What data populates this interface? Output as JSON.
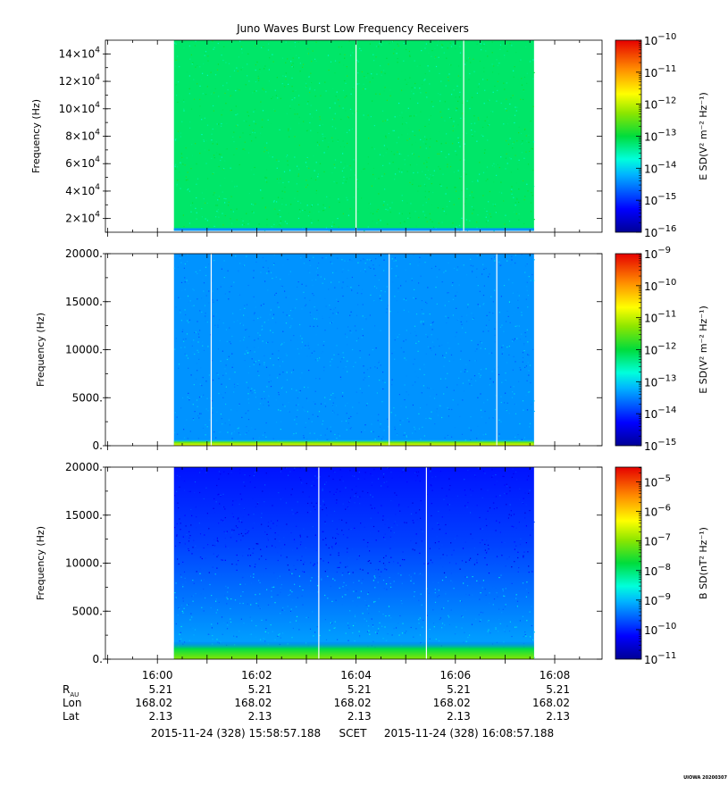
{
  "title": "Juno Waves Burst Low Frequency Receivers",
  "watermark": "UIOWA 20200307",
  "colors": {
    "axis": "#000000",
    "gap": "#ffffff",
    "grid_tick": "#000000"
  },
  "chart_data": [
    {
      "type": "heatmap",
      "name": "E spectral density, high band",
      "ylabel": "Frequency (Hz)",
      "y_ticks": [
        {
          "value": 20000,
          "mant": "2",
          "exp": "4"
        },
        {
          "value": 40000,
          "mant": "4",
          "exp": "4"
        },
        {
          "value": 60000,
          "mant": "6",
          "exp": "4"
        },
        {
          "value": 80000,
          "mant": "8",
          "exp": "4"
        },
        {
          "value": 100000,
          "mant": "10",
          "exp": "4"
        },
        {
          "value": 120000,
          "mant": "12",
          "exp": "4"
        },
        {
          "value": 140000,
          "mant": "14",
          "exp": "4"
        }
      ],
      "ylim": [
        10000,
        150000
      ],
      "data_start_freq": 11000,
      "colorbar_label": "E SD(V² m⁻² Hz⁻¹)",
      "colorbar_exponents": [
        -16,
        -15,
        -14,
        -13,
        -12,
        -11,
        -10
      ],
      "colorbar_range": [
        -16,
        -10
      ],
      "background_level": -13.2,
      "low_band_level": null,
      "gradient_level": null,
      "gaps": [
        "16:04:00",
        "16:06:10"
      ]
    },
    {
      "type": "heatmap",
      "name": "E spectral density, low band",
      "ylabel": "Frequency (Hz)",
      "y_ticks": [
        {
          "value": 0,
          "text": "0."
        },
        {
          "value": 5000,
          "text": "5000."
        },
        {
          "value": 10000,
          "text": "10000."
        },
        {
          "value": 15000,
          "text": "15000."
        },
        {
          "value": 20000,
          "text": "20000."
        }
      ],
      "ylim": [
        0,
        20000
      ],
      "data_start_freq": 0,
      "colorbar_label": "E SD(V² m⁻² Hz⁻¹)",
      "colorbar_exponents": [
        -15,
        -14,
        -13,
        -12,
        -11,
        -10,
        -9
      ],
      "colorbar_range": [
        -15,
        -9
      ],
      "background_level": -13.4,
      "low_band_level": -11.5,
      "gradient_level": null,
      "gaps": [
        "16:01:05",
        "16:04:40",
        "16:06:50"
      ]
    },
    {
      "type": "heatmap",
      "name": "B spectral density",
      "ylabel": "Frequency (Hz)",
      "y_ticks": [
        {
          "value": 0,
          "text": "0."
        },
        {
          "value": 5000,
          "text": "5000."
        },
        {
          "value": 10000,
          "text": "10000."
        },
        {
          "value": 15000,
          "text": "15000."
        },
        {
          "value": 20000,
          "text": "20000."
        }
      ],
      "ylim": [
        0,
        20000
      ],
      "data_start_freq": 0,
      "colorbar_label": "B SD(nT² Hz⁻¹)",
      "colorbar_exponents": [
        -11,
        -10,
        -9,
        -8,
        -7,
        -6,
        -5
      ],
      "colorbar_range": [
        -11,
        -4.5
      ],
      "background_level": -10.1,
      "low_band_level": -7.8,
      "gradient_level": -9.2,
      "gaps": [
        "16:03:15",
        "16:05:25"
      ]
    }
  ],
  "time_axis": {
    "start": "15:58:57.188",
    "end": "16:08:57.188",
    "data_start": "16:00:20",
    "data_end": "16:07:35",
    "major_ticks": [
      "16:00",
      "16:02",
      "16:04",
      "16:06",
      "16:08"
    ],
    "minor_tick_seconds": 30
  },
  "ephemeris": {
    "rows": [
      {
        "label_main": "R",
        "label_sub": "AU",
        "values": [
          "5.21",
          "5.21",
          "5.21",
          "5.21",
          "5.21"
        ]
      },
      {
        "label_main": "Lon",
        "label_sub": "",
        "values": [
          "168.02",
          "168.02",
          "168.02",
          "168.02",
          "168.02"
        ]
      },
      {
        "label_main": "Lat",
        "label_sub": "",
        "values": [
          "2.13",
          "2.13",
          "2.13",
          "2.13",
          "2.13"
        ]
      }
    ]
  },
  "footer": {
    "start_time": "2015-11-24 (328) 15:58:57.188",
    "scet_label": "SCET",
    "end_time": "2015-11-24 (328) 16:08:57.188"
  }
}
